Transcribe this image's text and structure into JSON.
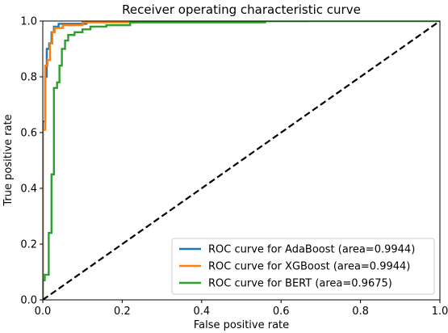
{
  "chart_data": {
    "type": "line",
    "title": "Receiver operating characteristic curve",
    "xlabel": "False positive rate",
    "ylabel": "True positive rate",
    "xlim": [
      0.0,
      1.0
    ],
    "ylim": [
      0.0,
      1.0
    ],
    "x_ticks": [
      0.0,
      0.2,
      0.4,
      0.6,
      0.8,
      1.0
    ],
    "y_ticks": [
      0.0,
      0.2,
      0.4,
      0.6,
      0.8,
      1.0
    ],
    "x_tick_labels": [
      "0.0",
      "0.2",
      "0.4",
      "0.6",
      "0.8",
      "1.0"
    ],
    "y_tick_labels": [
      "0.0",
      "0.2",
      "0.4",
      "0.6",
      "0.8",
      "1.0"
    ],
    "grid": false,
    "legend_position": "lower-right",
    "series": [
      {
        "name": "ROC curve for AdaBoost (area=0.9944)",
        "color": "#1f77b4",
        "style": "solid",
        "points": [
          [
            0.0,
            0.0
          ],
          [
            0.0,
            0.64
          ],
          [
            0.006,
            0.64
          ],
          [
            0.006,
            0.8
          ],
          [
            0.01,
            0.8
          ],
          [
            0.01,
            0.9
          ],
          [
            0.016,
            0.9
          ],
          [
            0.016,
            0.92
          ],
          [
            0.022,
            0.92
          ],
          [
            0.022,
            0.96
          ],
          [
            0.028,
            0.96
          ],
          [
            0.028,
            0.98
          ],
          [
            0.04,
            0.98
          ],
          [
            0.04,
            0.99
          ],
          [
            0.11,
            0.99
          ],
          [
            0.11,
            1.0
          ],
          [
            0.67,
            1.0
          ]
        ]
      },
      {
        "name": "ROC curve for XGBoost (area=0.9944)",
        "color": "#ff7f0e",
        "style": "solid",
        "points": [
          [
            0.0,
            0.0
          ],
          [
            0.0,
            0.61
          ],
          [
            0.006,
            0.61
          ],
          [
            0.006,
            0.84
          ],
          [
            0.012,
            0.84
          ],
          [
            0.012,
            0.86
          ],
          [
            0.018,
            0.86
          ],
          [
            0.018,
            0.92
          ],
          [
            0.024,
            0.92
          ],
          [
            0.024,
            0.96
          ],
          [
            0.03,
            0.96
          ],
          [
            0.03,
            0.975
          ],
          [
            0.05,
            0.975
          ],
          [
            0.05,
            0.985
          ],
          [
            0.1,
            0.985
          ],
          [
            0.1,
            0.995
          ],
          [
            0.24,
            0.995
          ],
          [
            0.24,
            1.0
          ],
          [
            0.67,
            1.0
          ]
        ]
      },
      {
        "name": "ROC curve for BERT (area=0.9675)",
        "color": "#2ca02c",
        "style": "solid",
        "points": [
          [
            0.0,
            0.0
          ],
          [
            0.0,
            0.07
          ],
          [
            0.005,
            0.07
          ],
          [
            0.005,
            0.09
          ],
          [
            0.015,
            0.09
          ],
          [
            0.015,
            0.24
          ],
          [
            0.022,
            0.24
          ],
          [
            0.022,
            0.45
          ],
          [
            0.028,
            0.45
          ],
          [
            0.028,
            0.76
          ],
          [
            0.036,
            0.76
          ],
          [
            0.036,
            0.78
          ],
          [
            0.042,
            0.78
          ],
          [
            0.042,
            0.84
          ],
          [
            0.048,
            0.84
          ],
          [
            0.048,
            0.9
          ],
          [
            0.056,
            0.9
          ],
          [
            0.056,
            0.93
          ],
          [
            0.064,
            0.93
          ],
          [
            0.064,
            0.95
          ],
          [
            0.08,
            0.95
          ],
          [
            0.08,
            0.96
          ],
          [
            0.1,
            0.96
          ],
          [
            0.1,
            0.97
          ],
          [
            0.12,
            0.97
          ],
          [
            0.12,
            0.98
          ],
          [
            0.16,
            0.98
          ],
          [
            0.16,
            0.985
          ],
          [
            0.22,
            0.985
          ],
          [
            0.22,
            0.995
          ],
          [
            0.56,
            0.995
          ],
          [
            0.56,
            1.0
          ],
          [
            1.0,
            1.0
          ]
        ]
      },
      {
        "name": "",
        "color": "#000000",
        "style": "dashed",
        "points": [
          [
            0.0,
            0.0
          ],
          [
            1.0,
            1.0
          ]
        ]
      }
    ]
  }
}
